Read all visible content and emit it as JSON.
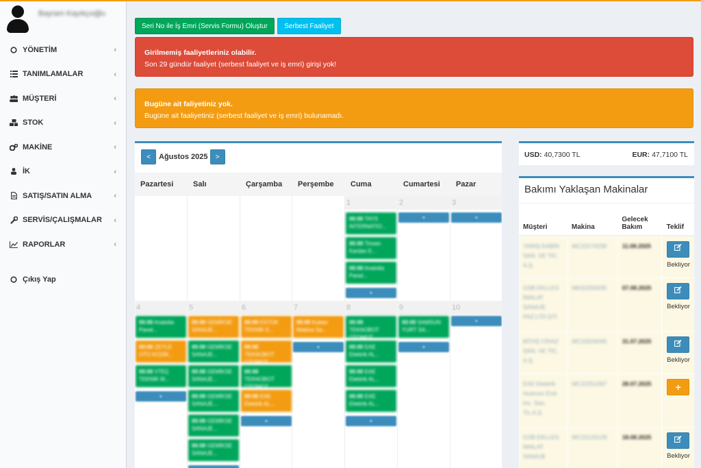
{
  "user": {
    "name": "Bayram Kayıkçıoğlu"
  },
  "menu": [
    {
      "label": "YÖNETİM",
      "icon": "circle-icon"
    },
    {
      "label": "TANIMLAMALAR",
      "icon": "list-icon"
    },
    {
      "label": "MÜŞTERİ",
      "icon": "users-icon"
    },
    {
      "label": "STOK",
      "icon": "cubes-icon"
    },
    {
      "label": "MAKİNE",
      "icon": "gears-icon"
    },
    {
      "label": "İK",
      "icon": "user-icon"
    },
    {
      "label": "SATIŞ/SATIN ALMA",
      "icon": "file-icon"
    },
    {
      "label": "SERVİS/ÇALIŞMALAR",
      "icon": "wrench-icon"
    },
    {
      "label": "RAPORLAR",
      "icon": "line-chart-icon"
    }
  ],
  "logout": {
    "label": "Çıkış Yap",
    "icon": "circle-icon"
  },
  "toolbar": {
    "serial_btn": "Seri No ile İş Emri (Servis Formu) Oluştur",
    "free_btn": "Serbest Faaliyet"
  },
  "alerts": {
    "missing_title": "Girilmemiş faaliyetleriniz olabilir.",
    "missing_text": "Son 29 gündür faaliyet (serbest faaliyet ve iş emri) girişi yok!",
    "today_title": "Bugüne ait faliyetiniz yok.",
    "today_text": "Bugüne ait faaliyetiniz (serbest faaliyet ve iş emri) bulunamadı."
  },
  "calendar": {
    "prev": "<",
    "next": ">",
    "month": "Ağustos 2025",
    "days": [
      "Pazartesi",
      "Salı",
      "Çarşamba",
      "Perşembe",
      "Cuma",
      "Cumartesi",
      "Pazar"
    ],
    "week1": {
      "dates": [
        "",
        "",
        "",
        "",
        "1",
        "2",
        "3"
      ]
    },
    "week2": {
      "dates": [
        "4",
        "5",
        "6",
        "7",
        "8",
        "9",
        "10"
      ]
    },
    "events": {
      "w1_fri": [
        {
          "time": "00:00",
          "text": "TAYS INTERNATIO...",
          "color": "green"
        },
        {
          "time": "00:00",
          "text": "Tinsan Kardan E...",
          "color": "green"
        },
        {
          "time": "00:00",
          "text": "Anatolia Panel...",
          "color": "green"
        }
      ],
      "w2_mon": [
        {
          "time": "00:00",
          "text": "Anatolia Panel...",
          "color": "green"
        },
        {
          "time": "00:00",
          "text": "ZEYLE OTO KOZM...",
          "color": "orange"
        },
        {
          "time": "00:00",
          "text": "VTEÇ TEKNİK M...",
          "color": "green"
        }
      ],
      "w2_tue": [
        {
          "time": "00:00",
          "text": "GEMİKSE SANAJE...",
          "color": "orange"
        },
        {
          "time": "00:00",
          "text": "GEMİKSE SANAJE...",
          "color": "green"
        },
        {
          "time": "00:00",
          "text": "GEMİKSE SANAJE...",
          "color": "green"
        },
        {
          "time": "00:00",
          "text": "GEMİKSE SANAJE...",
          "color": "green"
        },
        {
          "time": "00:00",
          "text": "GEMİKSE SANAJE...",
          "color": "green"
        },
        {
          "time": "00:00",
          "text": "GEMİKSE SANAJE...",
          "color": "green"
        }
      ],
      "w2_wed": [
        {
          "time": "00:00",
          "text": "ESTOK TEKNİK E...",
          "color": "orange"
        },
        {
          "time": "00:00",
          "text": "TEKNOBOT OTOMOT...",
          "color": "orange"
        },
        {
          "time": "00:00",
          "text": "TEKNOBOT OTOMOT...",
          "color": "green"
        },
        {
          "time": "00:00",
          "text": "EAE Elektrik AL...",
          "color": "orange"
        }
      ],
      "w2_thu": [
        {
          "time": "00:00",
          "text": "Kuban Makina Sa...",
          "color": "orange"
        }
      ],
      "w2_fri": [
        {
          "time": "00:00",
          "text": "TEKNOBOT OTOMOT...",
          "color": "green"
        },
        {
          "time": "00:00",
          "text": "EAE Elektrik AL...",
          "color": "green"
        },
        {
          "time": "00:00",
          "text": "EAE Elektrik AL...",
          "color": "green"
        },
        {
          "time": "00:00",
          "text": "EAE Elektrik AL...",
          "color": "green"
        }
      ],
      "w2_sat": [
        {
          "time": "00:00",
          "text": "SAMSUN YURT SA...",
          "color": "green"
        }
      ]
    },
    "more_label": "+"
  },
  "currency": {
    "usd_label": "USD:",
    "usd_value": "40,7300 TL",
    "eur_label": "EUR:",
    "eur_value": "47,7100 TL"
  },
  "maintenance": {
    "title": "Bakımı Yaklaşan Makinalar",
    "headers": {
      "customer": "Müşteri",
      "machine": "Makina",
      "next": "Gelecek Bakım",
      "offer": "Teklif"
    },
    "rows": [
      {
        "customer": "YARIŞ KABİN SAN. VE TİC. A.Ş.",
        "machine": "MC22174230",
        "date": "11.08.2025",
        "status": "Bekliyor",
        "action": "edit"
      },
      {
        "customer": "GSB EKLLES İMALAT SANAJE PAZ.LTD.ŞTİ.",
        "machine": "MK02200035",
        "date": "07.08.2025",
        "status": "Bekliyor",
        "action": "edit"
      },
      {
        "customer": "MTHŞ CİHAZ SAN. VE TİC. A.Ş.",
        "machine": "MC22026045",
        "date": "31.07.2025",
        "status": "Bekliyor",
        "action": "edit"
      },
      {
        "customer": "EAE Elektrik Asansor End. Inc. San. Tic.A.Ş.",
        "machine": "MC22251397",
        "date": "28.07.2025",
        "status": "",
        "action": "add"
      },
      {
        "customer": "GSB EKLLES İMALAT SANAJE",
        "machine": "MC22133129",
        "date": "18.08.2025",
        "status": "Bekliyor",
        "action": "edit"
      }
    ]
  }
}
